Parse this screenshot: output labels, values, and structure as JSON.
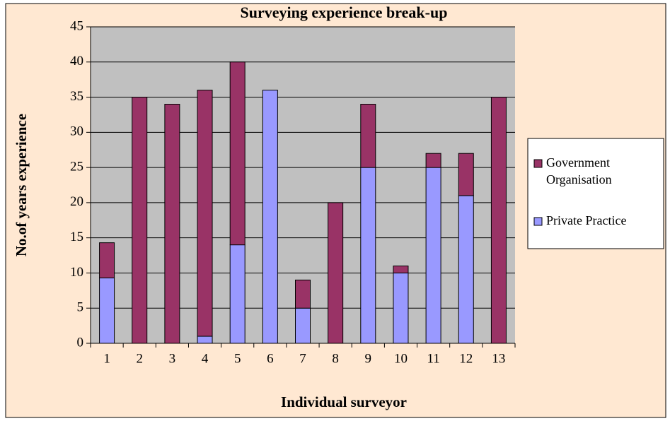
{
  "chart_data": {
    "type": "stacked_bar",
    "title": "Surveying experience break-up",
    "x_label": "Individual surveyor",
    "y_label": "No.of years experience",
    "categories": [
      "1",
      "2",
      "3",
      "4",
      "5",
      "6",
      "7",
      "8",
      "9",
      "10",
      "11",
      "12",
      "13"
    ],
    "series": [
      {
        "name": "Private Practice",
        "color": "#9999ff",
        "values": [
          9.3,
          0,
          0,
          1,
          14,
          36,
          5,
          0,
          25,
          10,
          25,
          21,
          0
        ]
      },
      {
        "name": "Government Organisation",
        "color": "#993366",
        "values": [
          5,
          35,
          34,
          35,
          26,
          0,
          4,
          20,
          9,
          1,
          2,
          6,
          35
        ]
      }
    ],
    "ylim": [
      0,
      45
    ],
    "yticks": [
      0,
      5,
      10,
      15,
      20,
      25,
      30,
      35,
      40,
      45
    ],
    "grid": true,
    "legend": "right"
  }
}
